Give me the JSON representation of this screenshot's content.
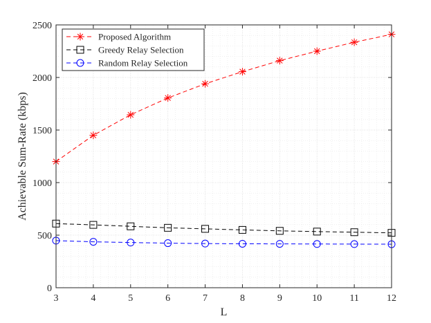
{
  "chart_data": {
    "type": "line",
    "title": "",
    "xlabel": "L",
    "ylabel": "Achievable Sum-Rate (kbps)",
    "xlim": [
      3,
      12
    ],
    "ylim": [
      0,
      2500
    ],
    "x_ticks": [
      3,
      4,
      5,
      6,
      7,
      8,
      9,
      10,
      11,
      12
    ],
    "y_ticks": [
      0,
      500,
      1000,
      1500,
      2000,
      2500
    ],
    "x_tick_labels": [
      "3",
      "4",
      "5",
      "6",
      "7",
      "8",
      "9",
      "10",
      "11",
      "12"
    ],
    "y_tick_labels": [
      "0",
      "500",
      "1000",
      "1500",
      "2000",
      "2500"
    ],
    "grid": true,
    "minor_grid": true,
    "legend_position": "top-left",
    "x": [
      3,
      4,
      5,
      6,
      7,
      8,
      9,
      10,
      11,
      12
    ],
    "series": [
      {
        "name": "Proposed Algorithm",
        "color": "#ff0000",
        "marker": "asterisk",
        "values": [
          1200,
          1450,
          1645,
          1805,
          1940,
          2055,
          2160,
          2250,
          2335,
          2410
        ]
      },
      {
        "name": "Greedy Relay Selection",
        "color": "#000000",
        "marker": "square",
        "values": [
          610,
          598,
          584,
          570,
          560,
          550,
          541,
          534,
          528,
          522
        ]
      },
      {
        "name": "Random Relay Selection",
        "color": "#0000ff",
        "marker": "circle",
        "values": [
          448,
          437,
          430,
          424,
          420,
          418,
          417,
          416,
          415,
          414
        ]
      }
    ]
  }
}
